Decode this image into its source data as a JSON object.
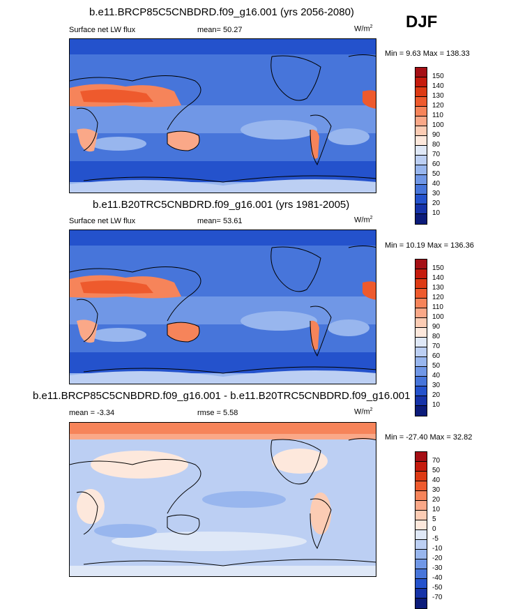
{
  "season": "DJF",
  "panels": [
    {
      "title": "b.e11.BRCP85C5CNBDRD.f09_g16.001 (yrs 2056-2080)",
      "left_label": "Surface net LW flux",
      "center_label": "mean=  50.27",
      "units": "W/m",
      "units_exp": "2",
      "minmax": "Min =   9.63 Max = 138.33",
      "colorbar_ticks": [
        "150",
        "140",
        "130",
        "120",
        "110",
        "100",
        "90",
        "80",
        "70",
        "60",
        "50",
        "40",
        "30",
        "20",
        "10"
      ],
      "colorbar_colors": [
        "#a50f15",
        "#c51b0d",
        "#dd3a14",
        "#ee5a2d",
        "#f6845a",
        "#faa888",
        "#fcccb4",
        "#fde8dc",
        "#dfe8f7",
        "#bccff3",
        "#98b6ee",
        "#7097e6",
        "#4775da",
        "#2452cc",
        "#1633a8",
        "#0c1c7a"
      ],
      "map_style": "absolute"
    },
    {
      "title": "b.e11.B20TRC5CNBDRD.f09_g16.001 (yrs 1981-2005)",
      "left_label": "Surface net LW flux",
      "center_label": "mean=  53.61",
      "units": "W/m",
      "units_exp": "2",
      "minmax": "Min =  10.19 Max = 136.36",
      "colorbar_ticks": [
        "150",
        "140",
        "130",
        "120",
        "110",
        "100",
        "90",
        "80",
        "70",
        "60",
        "50",
        "40",
        "30",
        "20",
        "10"
      ],
      "colorbar_colors": [
        "#a50f15",
        "#c51b0d",
        "#dd3a14",
        "#ee5a2d",
        "#f6845a",
        "#faa888",
        "#fcccb4",
        "#fde8dc",
        "#dfe8f7",
        "#bccff3",
        "#98b6ee",
        "#7097e6",
        "#4775da",
        "#2452cc",
        "#1633a8",
        "#0c1c7a"
      ],
      "map_style": "absolute"
    },
    {
      "title": "b.e11.BRCP85C5CNBDRD.f09_g16.001 - b.e11.B20TRC5CNBDRD.f09_g16.001",
      "left_label": "mean =  -3.34",
      "center_label": "rmse =   5.58",
      "units": "W/m",
      "units_exp": "2",
      "minmax": "Min = -27.40 Max =  32.82",
      "colorbar_ticks": [
        "70",
        "50",
        "40",
        "30",
        "20",
        "10",
        "5",
        "0",
        "-5",
        "-10",
        "-20",
        "-30",
        "-40",
        "-50",
        "-70"
      ],
      "colorbar_colors": [
        "#a50f15",
        "#c51b0d",
        "#dd3a14",
        "#ee5a2d",
        "#f6845a",
        "#faa888",
        "#fcccb4",
        "#fde8dc",
        "#dfe8f7",
        "#bccff3",
        "#98b6ee",
        "#7097e6",
        "#4775da",
        "#2452cc",
        "#1633a8",
        "#0c1c7a"
      ],
      "map_style": "difference"
    }
  ]
}
